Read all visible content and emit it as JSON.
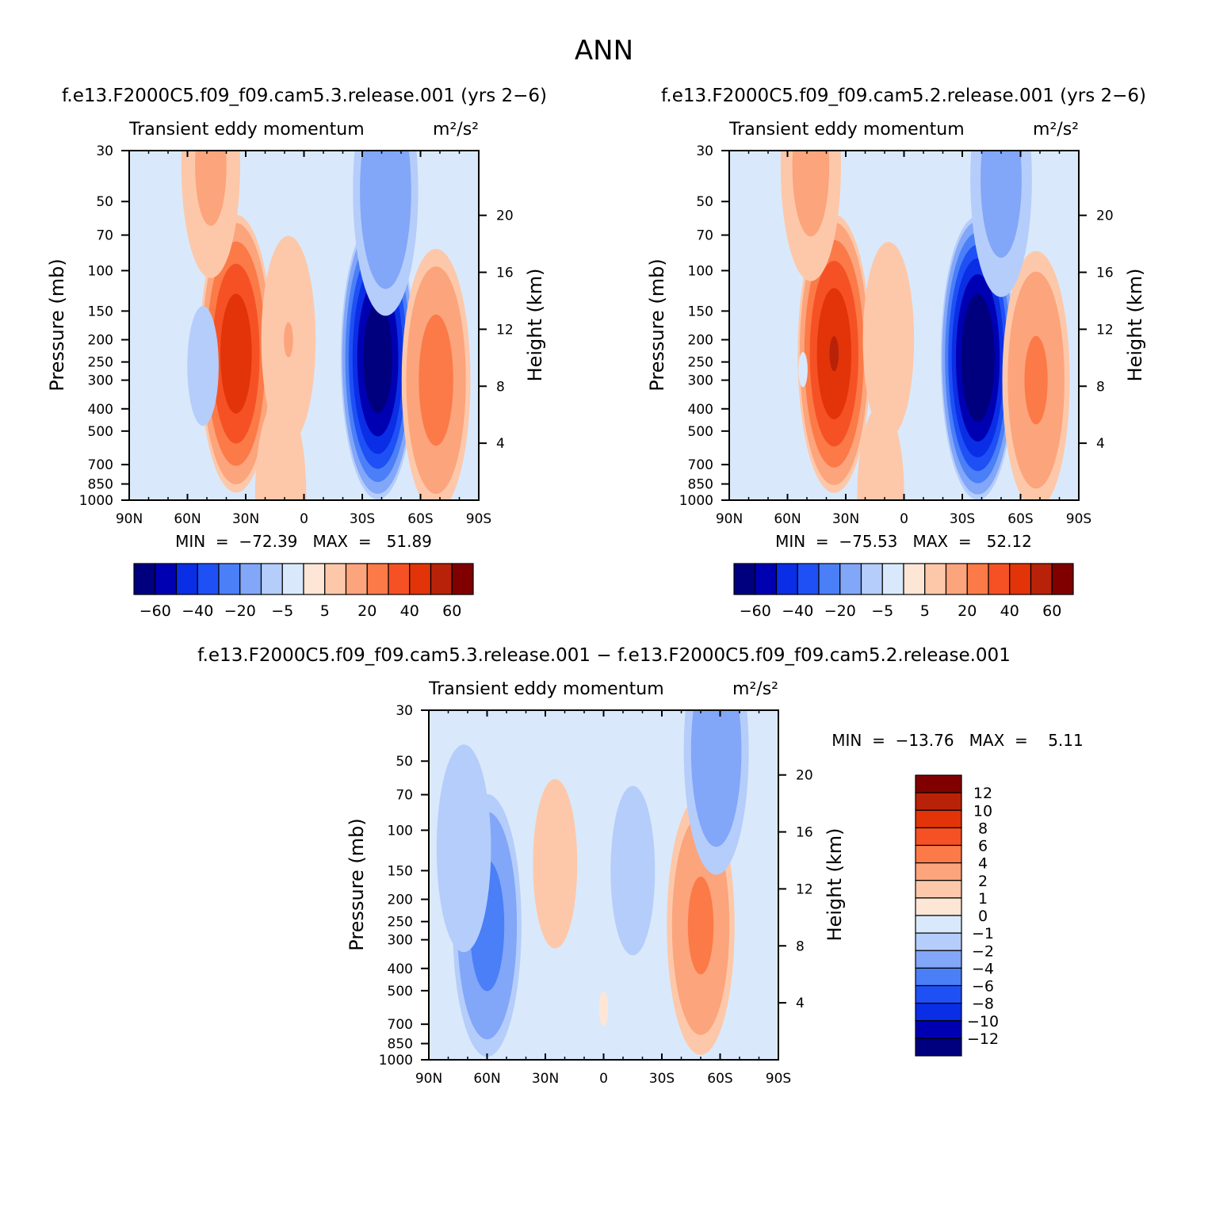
{
  "page": {
    "title": "ANN",
    "diff_title": "f.e13.F2000C5.f09_f09.cam5.3.release.001 − f.e13.F2000C5.f09_f09.cam5.2.release.001"
  },
  "colors": {
    "abs_scale": [
      "#00007f",
      "#0000b3",
      "#0a2ee6",
      "#1e50f5",
      "#4a7ff7",
      "#82a6f8",
      "#b5cdfa",
      "#d9e9fb",
      "#fde6d6",
      "#fdc8aa",
      "#fca47c",
      "#fb7a48",
      "#f65125",
      "#e23408",
      "#b82208",
      "#800000"
    ],
    "diff_scale": [
      "#00007f",
      "#0000b3",
      "#0a2ee6",
      "#1e50f5",
      "#4a7ff7",
      "#82a6f8",
      "#b5cdfa",
      "#d9e9fb",
      "#fde6d6",
      "#fdc8aa",
      "#fca47c",
      "#fb7a48",
      "#f65125",
      "#e23408",
      "#b82208",
      "#800000"
    ]
  },
  "panels": [
    {
      "run_title": "f.e13.F2000C5.f09_f09.cam5.3.release.001  (yrs 2−6)",
      "subtitle": "Transient eddy momentum",
      "units": "m²/s²",
      "min_max": "MIN  =  −72.39   MAX  =   51.89",
      "left_axis_label": "Pressure  (mb)",
      "right_axis_label": "Height  (km)"
    },
    {
      "run_title": "f.e13.F2000C5.f09_f09.cam5.2.release.001  (yrs 2−6)",
      "subtitle": "Transient eddy momentum",
      "units": "m²/s²",
      "min_max": "MIN  =  −75.53   MAX  =   52.12",
      "left_axis_label": "Pressure  (mb)",
      "right_axis_label": "Height  (km)"
    },
    {
      "run_title": "",
      "subtitle": "Transient eddy momentum",
      "units": "m²/s²",
      "min_max": "MIN  =  −13.76   MAX  =    5.11",
      "left_axis_label": "Pressure  (mb)",
      "right_axis_label": "Height  (km)"
    }
  ],
  "chart_data": [
    {
      "type": "heatmap",
      "title": "Transient eddy momentum",
      "units": "m²/s²",
      "xlabel": "",
      "ylabel": "Pressure  (mb)",
      "y2label": "Height  (km)",
      "x_ticks": [
        "90N",
        "60N",
        "30N",
        "0",
        "30S",
        "60S",
        "90S"
      ],
      "x_tick_values": [
        90,
        60,
        30,
        0,
        -30,
        -60,
        -90
      ],
      "xlim": [
        90,
        -90
      ],
      "y_ticks": [
        30,
        50,
        70,
        100,
        150,
        200,
        250,
        300,
        400,
        500,
        700,
        850,
        1000
      ],
      "ylim": [
        1000,
        30
      ],
      "y_scale": "log",
      "y2_ticks": [
        4,
        8,
        12,
        16,
        20
      ],
      "min": -72.39,
      "max": 51.89,
      "colorbar_levels": [
        -70,
        -60,
        -50,
        -40,
        -30,
        -20,
        -10,
        -5,
        0,
        5,
        10,
        20,
        30,
        40,
        50,
        60,
        70
      ],
      "colorbar_labels": [
        "−60",
        "−40",
        "−20",
        "−5",
        "5",
        "20",
        "40",
        "60"
      ],
      "features": [
        {
          "lat": 35,
          "p": 230,
          "value": 48
        },
        {
          "lat": -38,
          "p": 240,
          "value": -70
        },
        {
          "lat": -68,
          "p": 300,
          "value": 25
        },
        {
          "lat": 52,
          "p": 260,
          "value": -6
        },
        {
          "lat": 48,
          "p": 35,
          "value": 12
        },
        {
          "lat": -42,
          "p": 45,
          "value": -18
        },
        {
          "lat": 8,
          "p": 200,
          "value": 10
        },
        {
          "lat": 12,
          "p": 950,
          "value": 9
        }
      ]
    },
    {
      "type": "heatmap",
      "title": "Transient eddy momentum",
      "units": "m²/s²",
      "xlabel": "",
      "ylabel": "Pressure  (mb)",
      "y2label": "Height  (km)",
      "x_ticks": [
        "90N",
        "60N",
        "30N",
        "0",
        "30S",
        "60S",
        "90S"
      ],
      "x_tick_values": [
        90,
        60,
        30,
        0,
        -30,
        -60,
        -90
      ],
      "xlim": [
        90,
        -90
      ],
      "y_ticks": [
        30,
        50,
        70,
        100,
        150,
        200,
        250,
        300,
        400,
        500,
        700,
        850,
        1000
      ],
      "ylim": [
        1000,
        30
      ],
      "y_scale": "log",
      "y2_ticks": [
        4,
        8,
        12,
        16,
        20
      ],
      "min": -75.53,
      "max": 52.12,
      "colorbar_levels": [
        -70,
        -60,
        -50,
        -40,
        -30,
        -20,
        -10,
        -5,
        0,
        5,
        10,
        20,
        30,
        40,
        50,
        60,
        70
      ],
      "colorbar_labels": [
        "−60",
        "−40",
        "−20",
        "−5",
        "5",
        "20",
        "40",
        "60"
      ],
      "features": [
        {
          "lat": 36,
          "p": 230,
          "value": 50
        },
        {
          "lat": -38,
          "p": 240,
          "value": -74
        },
        {
          "lat": -68,
          "p": 300,
          "value": 22
        },
        {
          "lat": 52,
          "p": 270,
          "value": -5
        },
        {
          "lat": 48,
          "p": 35,
          "value": 13
        },
        {
          "lat": -50,
          "p": 40,
          "value": -14
        },
        {
          "lat": 8,
          "p": 200,
          "value": 9
        },
        {
          "lat": 12,
          "p": 950,
          "value": 8
        }
      ]
    },
    {
      "type": "heatmap",
      "title": "Transient eddy momentum",
      "units": "m²/s²",
      "xlabel": "",
      "ylabel": "Pressure  (mb)",
      "y2label": "Height  (km)",
      "x_ticks": [
        "90N",
        "60N",
        "30N",
        "0",
        "30S",
        "60S",
        "90S"
      ],
      "x_tick_values": [
        90,
        60,
        30,
        0,
        -30,
        -60,
        -90
      ],
      "xlim": [
        90,
        -90
      ],
      "y_ticks": [
        30,
        50,
        70,
        100,
        150,
        200,
        250,
        300,
        400,
        500,
        700,
        850,
        1000
      ],
      "ylim": [
        1000,
        30
      ],
      "y_scale": "log",
      "y2_ticks": [
        4,
        8,
        12,
        16,
        20
      ],
      "min": -13.76,
      "max": 5.11,
      "colorbar_levels": [
        -14,
        -12,
        -10,
        -8,
        -6,
        -4,
        -2,
        -1,
        0,
        1,
        2,
        4,
        6,
        8,
        10,
        12,
        14
      ],
      "colorbar_labels": [
        "12",
        "10",
        "8",
        "6",
        "4",
        "2",
        "1",
        "0",
        "−1",
        "−2",
        "−4",
        "−6",
        "−8",
        "−10",
        "−12"
      ],
      "features": [
        {
          "lat": 60,
          "p": 260,
          "value": -5
        },
        {
          "lat": 72,
          "p": 120,
          "value": -2
        },
        {
          "lat": -50,
          "p": 260,
          "value": 4.5
        },
        {
          "lat": -58,
          "p": 45,
          "value": -3.5
        },
        {
          "lat": 25,
          "p": 140,
          "value": 1.5
        },
        {
          "lat": -15,
          "p": 150,
          "value": -1.5
        },
        {
          "lat": 0,
          "p": 600,
          "value": 0.8
        }
      ]
    }
  ]
}
